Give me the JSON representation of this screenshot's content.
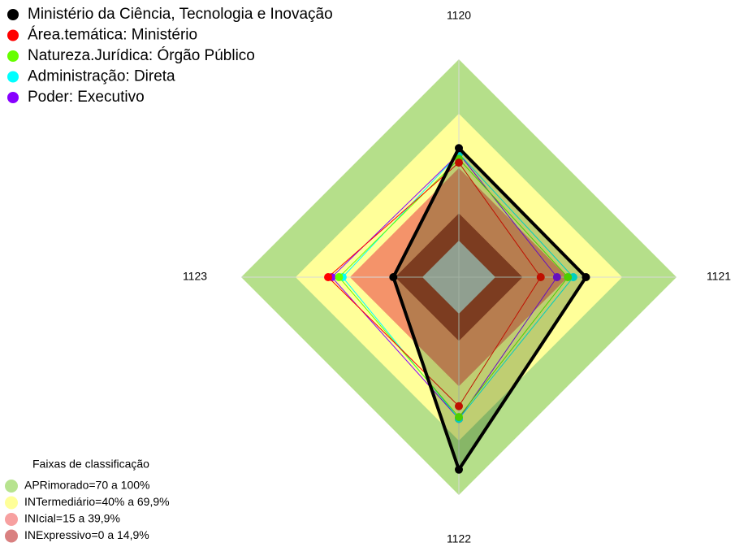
{
  "chart_data": {
    "type": "radar",
    "categories": [
      "1120",
      "1121",
      "1122",
      "1123"
    ],
    "ylim": [
      0,
      100
    ],
    "series": [
      {
        "name": "Ministério da Ciência, Tecnologia e Inovação",
        "color": "#000000",
        "values": [
          51,
          50,
          86,
          16
        ]
      },
      {
        "name": "Área.temática: Ministério",
        "color": "#ff0000",
        "values": [
          43,
          25,
          51,
          52
        ]
      },
      {
        "name": "Natureza.Jurídica: Órgão Público",
        "color": "#66ff00",
        "values": [
          45,
          40,
          57,
          46
        ]
      },
      {
        "name": "Administração: Direta",
        "color": "#00ffff",
        "values": [
          48,
          43,
          58,
          44
        ]
      },
      {
        "name": "Poder: Executivo",
        "color": "#8800ff",
        "values": [
          48,
          34,
          58,
          50
        ]
      }
    ],
    "bands": {
      "title": "Faixas de classificação",
      "items": [
        {
          "label": "APRimorado=70 a 100%",
          "from": 70,
          "to": 100,
          "color": "#b5df8a",
          "legend_color": "#b7e38f"
        },
        {
          "label": "INTermediário=40% a 69,9%",
          "from": 40,
          "to": 70,
          "color": "#ffff99",
          "legend_color": "#ffff99"
        },
        {
          "label": "INIcial=15 a 39,9%",
          "from": 15,
          "to": 40,
          "color": "#f4936a",
          "legend_color": "#f7a0a0"
        },
        {
          "label": "INExpressivo=0 a 14,9%",
          "from": 0,
          "to": 15,
          "color": "#a63c2b",
          "legend_color": "#d98080"
        }
      ]
    }
  }
}
